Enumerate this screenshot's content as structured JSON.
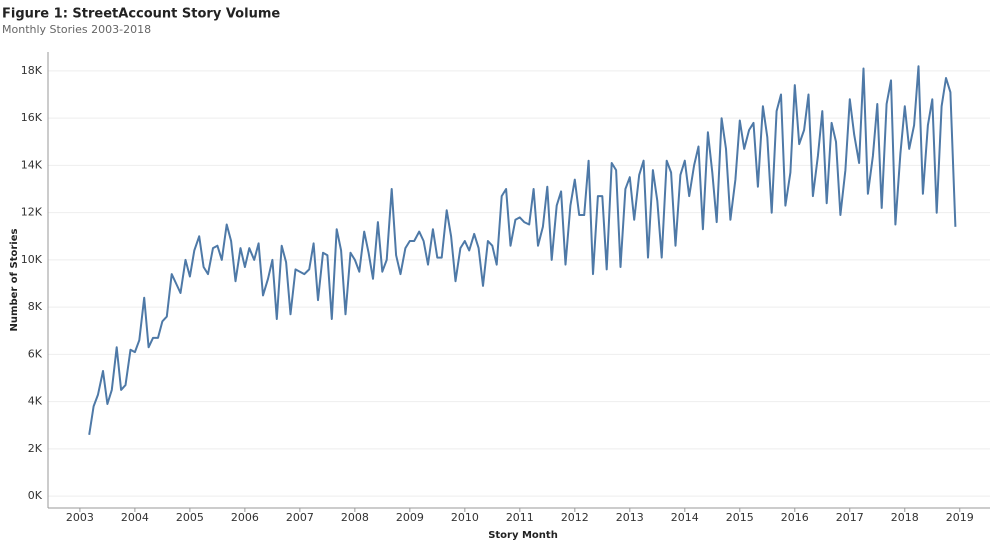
{
  "chart_data": {
    "type": "line",
    "title": "Figure 1: StreetAccount Story Volume",
    "subtitle": "Monthly Stories 2003-2018",
    "x_label": "Story Month",
    "y_label": "Number of Stories",
    "color": "#4e79a7",
    "grid": true,
    "xlim": [
      2002.42,
      2019.55
    ],
    "xticks": [
      2003,
      2004,
      2005,
      2006,
      2007,
      2008,
      2009,
      2010,
      2011,
      2012,
      2013,
      2014,
      2015,
      2016,
      2017,
      2018,
      2019
    ],
    "ylim": [
      -500,
      18800
    ],
    "yticks": [
      {
        "value": 0,
        "label": "0K"
      },
      {
        "value": 2000,
        "label": "2K"
      },
      {
        "value": 4000,
        "label": "4K"
      },
      {
        "value": 6000,
        "label": "6K"
      },
      {
        "value": 8000,
        "label": "8K"
      },
      {
        "value": 10000,
        "label": "10K"
      },
      {
        "value": 12000,
        "label": "12K"
      },
      {
        "value": 14000,
        "label": "14K"
      },
      {
        "value": 16000,
        "label": "16K"
      },
      {
        "value": 18000,
        "label": "18K"
      }
    ],
    "x": [
      2003.17,
      2003.25,
      2003.33,
      2003.42,
      2003.5,
      2003.58,
      2003.67,
      2003.75,
      2003.83,
      2003.92,
      2004,
      2004.08,
      2004.17,
      2004.25,
      2004.33,
      2004.42,
      2004.5,
      2004.58,
      2004.67,
      2004.75,
      2004.83,
      2004.92,
      2005,
      2005.08,
      2005.17,
      2005.25,
      2005.33,
      2005.42,
      2005.5,
      2005.58,
      2005.67,
      2005.75,
      2005.83,
      2005.92,
      2006,
      2006.08,
      2006.17,
      2006.25,
      2006.33,
      2006.42,
      2006.5,
      2006.58,
      2006.67,
      2006.75,
      2006.83,
      2006.92,
      2007,
      2007.08,
      2007.17,
      2007.25,
      2007.33,
      2007.42,
      2007.5,
      2007.58,
      2007.67,
      2007.75,
      2007.83,
      2007.92,
      2008,
      2008.08,
      2008.17,
      2008.25,
      2008.33,
      2008.42,
      2008.5,
      2008.58,
      2008.67,
      2008.75,
      2008.83,
      2008.92,
      2009,
      2009.08,
      2009.17,
      2009.25,
      2009.33,
      2009.42,
      2009.5,
      2009.58,
      2009.67,
      2009.75,
      2009.83,
      2009.92,
      2010,
      2010.08,
      2010.17,
      2010.25,
      2010.33,
      2010.42,
      2010.5,
      2010.58,
      2010.67,
      2010.75,
      2010.83,
      2010.92,
      2011,
      2011.08,
      2011.17,
      2011.25,
      2011.33,
      2011.42,
      2011.5,
      2011.58,
      2011.67,
      2011.75,
      2011.83,
      2011.92,
      2012,
      2012.08,
      2012.17,
      2012.25,
      2012.33,
      2012.42,
      2012.5,
      2012.58,
      2012.67,
      2012.75,
      2012.83,
      2012.92,
      2013,
      2013.08,
      2013.17,
      2013.25,
      2013.33,
      2013.42,
      2013.5,
      2013.58,
      2013.67,
      2013.75,
      2013.83,
      2013.92,
      2014,
      2014.08,
      2014.17,
      2014.25,
      2014.33,
      2014.42,
      2014.5,
      2014.58,
      2014.67,
      2014.75,
      2014.83,
      2014.92,
      2015,
      2015.08,
      2015.17,
      2015.25,
      2015.33,
      2015.42,
      2015.5,
      2015.58,
      2015.67,
      2015.75,
      2015.83,
      2015.92,
      2016,
      2016.08,
      2016.17,
      2016.25,
      2016.33,
      2016.42,
      2016.5,
      2016.58,
      2016.67,
      2016.75,
      2016.83,
      2016.92,
      2017,
      2017.08,
      2017.17,
      2017.25,
      2017.33,
      2017.42,
      2017.5,
      2017.58,
      2017.67,
      2017.75,
      2017.83,
      2017.92,
      2018,
      2018.08,
      2018.17,
      2018.25,
      2018.33,
      2018.42,
      2018.5,
      2018.58,
      2018.67,
      2018.75,
      2018.83,
      2018.92
    ],
    "values": [
      2600,
      3800,
      4300,
      5300,
      3900,
      4500,
      6300,
      4500,
      4700,
      6200,
      6100,
      6600,
      8400,
      6300,
      6700,
      6700,
      7400,
      7600,
      9400,
      9000,
      8600,
      10000,
      9300,
      10400,
      11000,
      9700,
      9400,
      10500,
      10600,
      10000,
      11500,
      10800,
      9100,
      10500,
      9700,
      10500,
      10000,
      10700,
      8500,
      9200,
      10000,
      7500,
      10600,
      9900,
      7700,
      9600,
      9500,
      9400,
      9600,
      10700,
      8300,
      10300,
      10200,
      7500,
      11300,
      10400,
      7700,
      10300,
      10000,
      9500,
      11200,
      10300,
      9200,
      11600,
      9500,
      10000,
      13000,
      10200,
      9400,
      10500,
      10800,
      10800,
      11200,
      10800,
      9800,
      11300,
      10100,
      10100,
      12100,
      11000,
      9100,
      10500,
      10800,
      10400,
      11100,
      10500,
      8900,
      10800,
      10600,
      9800,
      12700,
      13000,
      10600,
      11700,
      11800,
      11600,
      11500,
      13000,
      10600,
      11400,
      13100,
      10000,
      12300,
      12900,
      9800,
      12300,
      13400,
      11900,
      11900,
      14200,
      9400,
      12700,
      12700,
      9600,
      14100,
      13800,
      9700,
      13000,
      13500,
      11700,
      13600,
      14200,
      10100,
      13800,
      12500,
      10100,
      14200,
      13700,
      10600,
      13600,
      14200,
      12700,
      14000,
      14800,
      11300,
      15400,
      13700,
      11600,
      16000,
      14700,
      11700,
      13400,
      15900,
      14700,
      15500,
      15800,
      13100,
      16500,
      15200,
      12000,
      16300,
      17000,
      12300,
      13700,
      17400,
      14900,
      15500,
      17000,
      12700,
      14400,
      16300,
      12400,
      15800,
      15000,
      11900,
      13800,
      16800,
      15300,
      14100,
      18100,
      12800,
      14400,
      16600,
      12200,
      16600,
      17600,
      11500,
      14500,
      16500,
      14700,
      15700,
      18200,
      12800,
      15700,
      16800,
      12000,
      16500,
      17700,
      17100,
      11400
    ]
  }
}
